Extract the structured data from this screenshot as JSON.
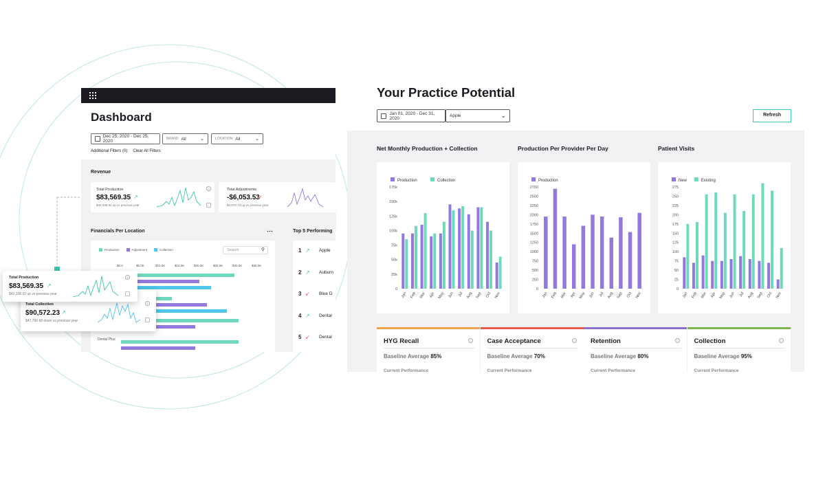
{
  "dashboard": {
    "title": "Dashboard",
    "date_range": "Dec 25, 2020 - Dec 25, 2020",
    "brand_label": "BRAND",
    "brand_value": "All",
    "location_label": "LOCATION",
    "location_value": "All",
    "additional_filters": "Additional Filters (0)",
    "clear_filters": "Clear All Filters",
    "revenue_section": "Revenue",
    "total_production": {
      "label": "Total Production",
      "value": "$83,569.35",
      "sub": "$42,338.92 up vs previous year",
      "trend": "up"
    },
    "total_adjustments": {
      "label": "Total Adjustments",
      "value": "-$6,053.53",
      "sub": "$4,070.73 up vs previous year",
      "trend": "down"
    },
    "financials_title": "Financials Per Location",
    "financials_menu": "⋯",
    "legend": [
      "Production",
      "Adjustment",
      "Collection"
    ],
    "search_placeholder": "Search",
    "axis_ticks": [
      "$0.0",
      "$5.0K",
      "$10.0K",
      "$15.0K",
      "$20.0K",
      "$25.0K",
      "$30.0K",
      "$35.0K"
    ],
    "row_label_last": "Dental Plus",
    "top5_title": "Top 5 Performing",
    "top5": [
      {
        "rank": "1",
        "name": "Apple",
        "trend": "up"
      },
      {
        "rank": "2",
        "name": "Auburn",
        "trend": "up"
      },
      {
        "rank": "3",
        "name": "Blue D",
        "trend": "down"
      },
      {
        "rank": "4",
        "name": "Dental",
        "trend": "up"
      },
      {
        "rank": "5",
        "name": "Dental",
        "trend": "down"
      }
    ],
    "float_production": {
      "label": "Total Production",
      "value": "$83,569.35",
      "sub": "$42,338.92 up vs previous year"
    },
    "float_collection": {
      "label": "Total Collection",
      "value": "$90,572.23",
      "sub": "$47,796.68 down vs previous year"
    }
  },
  "practice": {
    "title": "Your Practice Potential",
    "date_range": "Jan 01, 2020 - Dec 31, 2020",
    "location_value": "Apple",
    "refresh_label": "Refresh",
    "metrics": [
      {
        "title": "HYG Recall",
        "baseline_label": "Baseline Average",
        "baseline_value": "85%",
        "current_label": "Current Performance",
        "color": "#f0a24a"
      },
      {
        "title": "Case Acceptance",
        "baseline_label": "Baseline Average",
        "baseline_value": "70%",
        "current_label": "Current Performance",
        "color": "#e85a45"
      },
      {
        "title": "Retention",
        "baseline_label": "Baseline Average",
        "baseline_value": "80%",
        "current_label": "Current Performance",
        "color": "#8b6fd6"
      },
      {
        "title": "Collection",
        "baseline_label": "Baseline Average",
        "baseline_value": "95%",
        "current_label": "Current Performance",
        "color": "#7ab648"
      }
    ]
  },
  "colors": {
    "purple": "#9378dd",
    "teal": "#6fd9bd",
    "blue": "#4fc6ea",
    "green": "#3ec6a8",
    "red": "#e55a4b"
  },
  "chart_data": [
    {
      "type": "bar",
      "title": "Net Monthly Production + Collection",
      "categories": [
        "Jan",
        "Feb",
        "Mar",
        "Apr",
        "May",
        "Jun",
        "Jul",
        "Aug",
        "Sep",
        "Oct",
        "Nov"
      ],
      "yticks": [
        "0",
        "25k",
        "50k",
        "75k",
        "100k",
        "125k",
        "150k",
        "175k"
      ],
      "ylim": [
        0,
        175000
      ],
      "series": [
        {
          "name": "Production",
          "color": "#9378dd",
          "values": [
            95000,
            95000,
            110000,
            90000,
            95000,
            145000,
            138000,
            128000,
            140000,
            115000,
            45000
          ]
        },
        {
          "name": "Collection",
          "color": "#6fd9bd",
          "values": [
            85000,
            108000,
            130000,
            95000,
            115000,
            135000,
            142000,
            100000,
            140000,
            100000,
            55000
          ]
        }
      ]
    },
    {
      "type": "bar",
      "title": "Production Per Provider Per Day",
      "categories": [
        "Jan",
        "Feb",
        "Mar",
        "Apr",
        "May",
        "Jun",
        "Jul",
        "Aug",
        "Sep",
        "Oct",
        "Nov"
      ],
      "yticks": [
        "0",
        "250",
        "500",
        "750",
        "1000",
        "1250",
        "1500",
        "1750",
        "2000",
        "2250",
        "2500",
        "2750"
      ],
      "ylim": [
        0,
        2750
      ],
      "series": [
        {
          "name": "Production",
          "color": "#9378dd",
          "values": [
            1950,
            2700,
            1950,
            1200,
            1700,
            2000,
            1950,
            1380,
            1930,
            1530,
            2050
          ]
        }
      ]
    },
    {
      "type": "bar",
      "title": "Patient Visits",
      "categories": [
        "Jan",
        "Feb",
        "Mar",
        "Apr",
        "May",
        "Jun",
        "Jul",
        "Aug",
        "Sep",
        "Oct",
        "Nov"
      ],
      "yticks": [
        "0",
        "25",
        "50",
        "75",
        "100",
        "125",
        "150",
        "175",
        "200",
        "225",
        "250",
        "275"
      ],
      "ylim": [
        0,
        275
      ],
      "series": [
        {
          "name": "New",
          "color": "#9378dd",
          "values": [
            85,
            70,
            90,
            75,
            75,
            80,
            88,
            80,
            75,
            70,
            25
          ]
        },
        {
          "name": "Existing",
          "color": "#6fd9bd",
          "values": [
            175,
            180,
            255,
            260,
            205,
            255,
            210,
            255,
            285,
            265,
            110
          ]
        }
      ]
    }
  ]
}
